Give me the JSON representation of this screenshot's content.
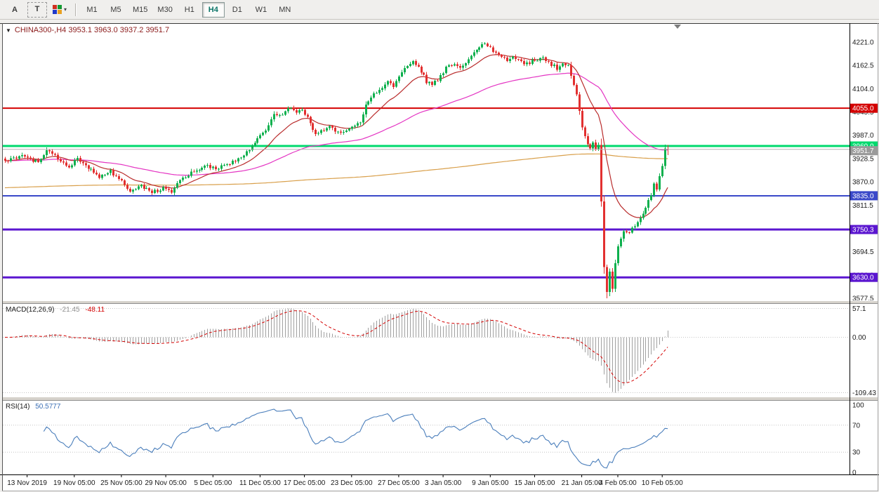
{
  "toolbar": {
    "tool_buttons": [
      {
        "id": "arrow-tool",
        "label": "A"
      },
      {
        "id": "text-tool",
        "label": "T"
      }
    ],
    "colors_caret": "▾",
    "timeframes": [
      "M1",
      "M5",
      "M15",
      "M30",
      "H1",
      "H4",
      "D1",
      "W1",
      "MN"
    ],
    "active_timeframe": "H4"
  },
  "chart": {
    "title_arrow": "▼",
    "title": "CHINA300-,H4 3953.1 3963.0 3937.2 3951.7",
    "symbol": "CHINA300-",
    "period": "H4",
    "ohlc": {
      "open": 3953.1,
      "high": 3963.0,
      "low": 3937.2,
      "close": 3951.7
    },
    "price_scale": {
      "labels": [
        "4221.0",
        "4162.5",
        "4104.0",
        "4045.5",
        "3987.0",
        "3928.5",
        "3870.0",
        "3811.5",
        "3753.0",
        "3694.5",
        "3636.0",
        "3577.5"
      ],
      "values": [
        4221.0,
        4162.5,
        4104.0,
        4045.5,
        3987.0,
        3928.5,
        3870.0,
        3811.5,
        3753.0,
        3694.5,
        3636.0,
        3577.5
      ]
    },
    "hlines": [
      {
        "label": "4055.0",
        "value": 4055.0,
        "color": "#d40000",
        "width": 2
      },
      {
        "label": "3960.0",
        "value": 3960.0,
        "color": "#00d96d",
        "width": 3
      },
      {
        "label": "3835.0",
        "value": 3835.0,
        "color": "#3a49c9",
        "width": 2
      },
      {
        "label": "3750.3",
        "value": 3750.3,
        "color": "#5b16d0",
        "width": 3
      },
      {
        "label": "3630.0",
        "value": 3630.0,
        "color": "#5b16d0",
        "width": 3
      }
    ],
    "bid": {
      "label": "3951.7",
      "value": 3951.7,
      "color": "#b0b0b0"
    },
    "time_scale": [
      {
        "label": "13 Nov 2019",
        "i": 8
      },
      {
        "label": "19 Nov 05:00",
        "i": 25
      },
      {
        "label": "25 Nov 05:00",
        "i": 42
      },
      {
        "label": "29 Nov 05:00",
        "i": 58
      },
      {
        "label": "5 Dec 05:00",
        "i": 75
      },
      {
        "label": "11 Dec 05:00",
        "i": 92
      },
      {
        "label": "17 Dec 05:00",
        "i": 108
      },
      {
        "label": "23 Dec 05:00",
        "i": 125
      },
      {
        "label": "27 Dec 05:00",
        "i": 142
      },
      {
        "label": "3 Jan 05:00",
        "i": 158
      },
      {
        "label": "9 Jan 05:00",
        "i": 175
      },
      {
        "label": "15 Jan 05:00",
        "i": 191
      },
      {
        "label": "21 Jan 05:00",
        "i": 208
      },
      {
        "label": "4 Feb 05:00",
        "i": 221
      },
      {
        "label": "10 Feb 05:00",
        "i": 237
      }
    ]
  },
  "macd": {
    "title": "MACD(12,26,9)",
    "value_main": "-21.45",
    "value_signal": "-48.11",
    "scale": {
      "labels": [
        "57.1",
        "0.00",
        "-109.43"
      ],
      "values": [
        57.1,
        0,
        -109.43
      ]
    }
  },
  "rsi": {
    "title": "RSI(14)",
    "value": "50.5777",
    "scale": {
      "labels": [
        "100",
        "70",
        "30",
        "0"
      ],
      "values": [
        100,
        70,
        30,
        0
      ]
    },
    "levels": [
      70,
      30
    ]
  },
  "chart_data": {
    "type": "candlestick",
    "symbol": "CHINA300-",
    "timeframe": "H4",
    "candle_count": 240,
    "y_range": [
      3565,
      4245
    ],
    "price_anchors": [
      [
        0,
        3920
      ],
      [
        6,
        3938
      ],
      [
        12,
        3918
      ],
      [
        15,
        3950
      ],
      [
        19,
        3930
      ],
      [
        23,
        3906
      ],
      [
        26,
        3930
      ],
      [
        30,
        3906
      ],
      [
        34,
        3882
      ],
      [
        38,
        3896
      ],
      [
        42,
        3870
      ],
      [
        45,
        3846
      ],
      [
        49,
        3860
      ],
      [
        53,
        3842
      ],
      [
        57,
        3856
      ],
      [
        60,
        3846
      ],
      [
        64,
        3880
      ],
      [
        68,
        3896
      ],
      [
        72,
        3910
      ],
      [
        76,
        3904
      ],
      [
        80,
        3916
      ],
      [
        83,
        3922
      ],
      [
        87,
        3946
      ],
      [
        90,
        3966
      ],
      [
        92,
        3986
      ],
      [
        95,
        4012
      ],
      [
        97,
        4044
      ],
      [
        100,
        4038
      ],
      [
        102,
        4056
      ],
      [
        105,
        4046
      ],
      [
        107,
        4050
      ],
      [
        110,
        4020
      ],
      [
        112,
        3990
      ],
      [
        115,
        4002
      ],
      [
        117,
        4006
      ],
      [
        120,
        3994
      ],
      [
        123,
        4002
      ],
      [
        125,
        4006
      ],
      [
        128,
        4022
      ],
      [
        130,
        4060
      ],
      [
        133,
        4090
      ],
      [
        135,
        4102
      ],
      [
        138,
        4122
      ],
      [
        140,
        4112
      ],
      [
        142,
        4132
      ],
      [
        144,
        4152
      ],
      [
        147,
        4172
      ],
      [
        149,
        4160
      ],
      [
        152,
        4122
      ],
      [
        154,
        4112
      ],
      [
        157,
        4136
      ],
      [
        159,
        4156
      ],
      [
        162,
        4166
      ],
      [
        164,
        4160
      ],
      [
        167,
        4176
      ],
      [
        169,
        4196
      ],
      [
        172,
        4216
      ],
      [
        174,
        4210
      ],
      [
        176,
        4200
      ],
      [
        178,
        4190
      ],
      [
        181,
        4176
      ],
      [
        183,
        4182
      ],
      [
        186,
        4170
      ],
      [
        188,
        4166
      ],
      [
        191,
        4176
      ],
      [
        194,
        4182
      ],
      [
        196,
        4170
      ],
      [
        199,
        4156
      ],
      [
        201,
        4168
      ],
      [
        203,
        4160
      ],
      [
        204,
        4140
      ],
      [
        206,
        4088
      ],
      [
        208,
        4010
      ],
      [
        210,
        3962
      ],
      [
        211,
        3956
      ],
      [
        212,
        3966
      ],
      [
        213,
        3956
      ],
      [
        214,
        3958
      ],
      [
        215,
        3820
      ],
      [
        216,
        3660
      ],
      [
        217,
        3590
      ],
      [
        218,
        3642
      ],
      [
        219,
        3602
      ],
      [
        220,
        3668
      ],
      [
        221,
        3706
      ],
      [
        223,
        3748
      ],
      [
        225,
        3740
      ],
      [
        227,
        3762
      ],
      [
        229,
        3778
      ],
      [
        231,
        3806
      ],
      [
        233,
        3838
      ],
      [
        234,
        3862
      ],
      [
        235,
        3850
      ],
      [
        236,
        3882
      ],
      [
        237,
        3910
      ],
      [
        238,
        3954
      ],
      [
        239,
        3951.7
      ]
    ],
    "forced_high": {
      "index": 172,
      "price": 4221.0
    },
    "forced_low": {
      "index": 217,
      "price": 3577.5
    },
    "last_candle": {
      "o": 3953.1,
      "h": 3963.0,
      "l": 3937.2,
      "c": 3951.7
    },
    "moving_averages": [
      {
        "name": "ma-fast",
        "color": "#b92c2c",
        "period": 16
      },
      {
        "name": "ma-medium",
        "color": "#e435c3",
        "period": 72
      },
      {
        "name": "ma-slow",
        "color": "#d9a04c",
        "alpha": 0.003,
        "seed": 3855
      }
    ],
    "macd_params": {
      "fast": 12,
      "slow": 26,
      "signal": 9
    },
    "rsi_period": 14
  },
  "colors": {
    "bull": "#0eb04e",
    "bear": "#e23030",
    "macd_hist": "#a0a0a0",
    "macd_signal": "#d40000",
    "rsi_line": "#4a7ebb",
    "bid_line": "#b0b0b0",
    "grid_dotted": "#c4c4c4"
  }
}
